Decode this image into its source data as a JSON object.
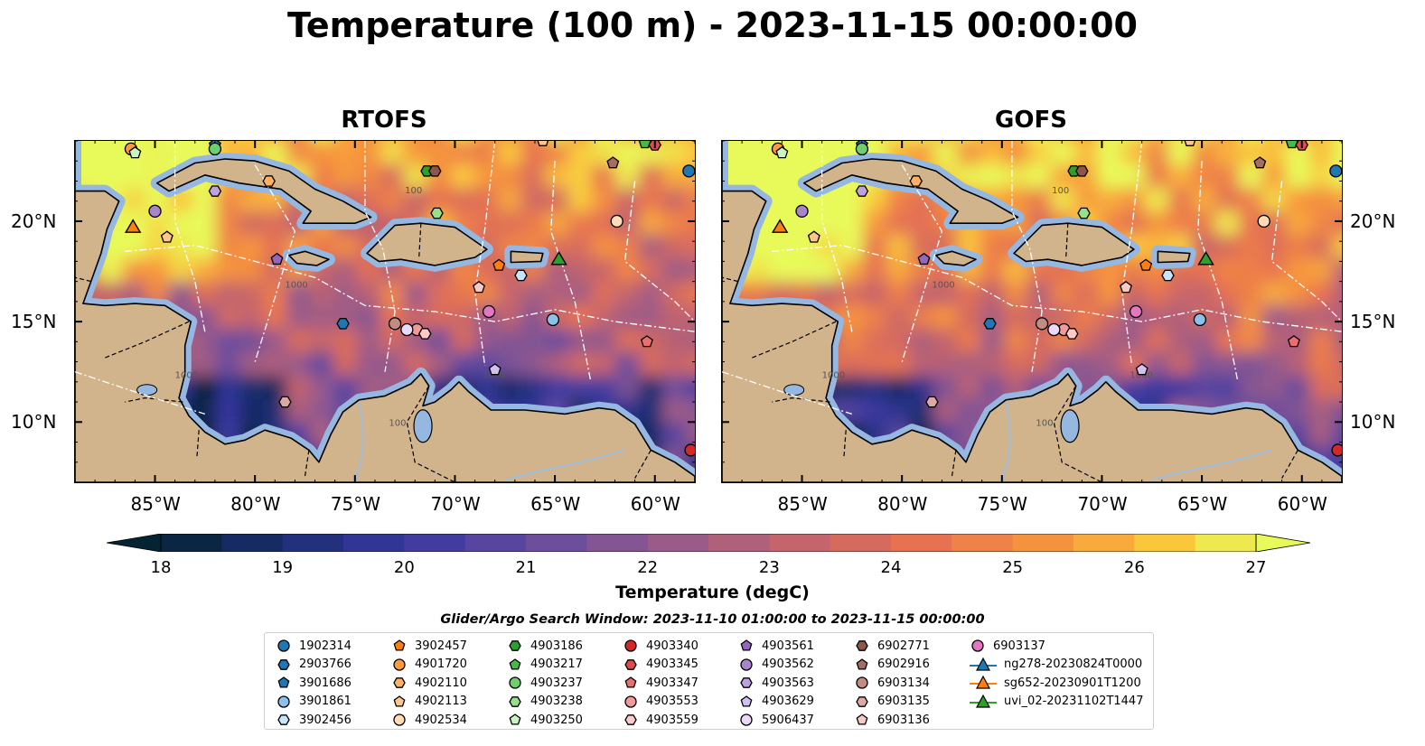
{
  "title": "Temperature (100 m) - 2023-11-15 00:00:00",
  "panels": [
    {
      "title": "RTOFS"
    },
    {
      "title": "GOFS"
    }
  ],
  "axes": {
    "lon_labels": [
      "85°W",
      "80°W",
      "75°W",
      "70°W",
      "65°W",
      "60°W"
    ],
    "lat_labels": [
      "20°N",
      "15°N",
      "10°N"
    ],
    "lon_values": [
      -85,
      -80,
      -75,
      -70,
      -65,
      -60
    ],
    "lat_values": [
      20,
      15,
      10
    ],
    "lon_range": [
      -89,
      -58
    ],
    "lat_range": [
      7,
      24
    ]
  },
  "colorbar": {
    "label": "Temperature (degC)",
    "ticks": [
      "18",
      "19",
      "20",
      "21",
      "22",
      "23",
      "24",
      "25",
      "26",
      "27"
    ],
    "range": [
      18,
      27
    ],
    "step": 0.5,
    "extend": "both",
    "colormap": "thermal"
  },
  "contours": [
    "100",
    "1000"
  ],
  "search_window": "Glider/Argo Search Window: 2023-11-10 01:00:00 to 2023-11-15 00:00:00",
  "legend": [
    {
      "label": "1902314",
      "marker": "circle",
      "color": "#1f77b4"
    },
    {
      "label": "2903766",
      "marker": "hexagon",
      "color": "#1f77b4"
    },
    {
      "label": "3901686",
      "marker": "pentagon",
      "color": "#1f77b4"
    },
    {
      "label": "3901861",
      "marker": "circle",
      "color": "#8cc2ea"
    },
    {
      "label": "3902456",
      "marker": "hexagon",
      "color": "#c6e4fb"
    },
    {
      "label": "3902457",
      "marker": "pentagon",
      "color": "#ff7f0e"
    },
    {
      "label": "4901720",
      "marker": "circle",
      "color": "#ff9a3c"
    },
    {
      "label": "4902110",
      "marker": "hexagon",
      "color": "#ffb066"
    },
    {
      "label": "4902113",
      "marker": "pentagon",
      "color": "#ffc58f"
    },
    {
      "label": "4902534",
      "marker": "circle",
      "color": "#ffdcb5"
    },
    {
      "label": "4903186",
      "marker": "hexagon",
      "color": "#2ca02c"
    },
    {
      "label": "4903217",
      "marker": "pentagon",
      "color": "#48b848"
    },
    {
      "label": "4903237",
      "marker": "circle",
      "color": "#6fcf6f"
    },
    {
      "label": "4903238",
      "marker": "hexagon",
      "color": "#98df8a"
    },
    {
      "label": "4903250",
      "marker": "pentagon",
      "color": "#c9f5c0"
    },
    {
      "label": "4903340",
      "marker": "circle",
      "color": "#d62728"
    },
    {
      "label": "4903345",
      "marker": "hexagon",
      "color": "#e04a4b"
    },
    {
      "label": "4903347",
      "marker": "pentagon",
      "color": "#eb6f6f"
    },
    {
      "label": "4903553",
      "marker": "circle",
      "color": "#f29a9a"
    },
    {
      "label": "4903559",
      "marker": "hexagon",
      "color": "#ffc9c9"
    },
    {
      "label": "4903561",
      "marker": "pentagon",
      "color": "#9467bd"
    },
    {
      "label": "4903562",
      "marker": "circle",
      "color": "#a884cf"
    },
    {
      "label": "4903563",
      "marker": "hexagon",
      "color": "#bea2de"
    },
    {
      "label": "4903629",
      "marker": "pentagon",
      "color": "#d4c0ee"
    },
    {
      "label": "5906437",
      "marker": "circle",
      "color": "#ead9fb"
    },
    {
      "label": "6902771",
      "marker": "hexagon",
      "color": "#8c564b"
    },
    {
      "label": "6902916",
      "marker": "pentagon",
      "color": "#a66e63"
    },
    {
      "label": "6903134",
      "marker": "circle",
      "color": "#c28c82"
    },
    {
      "label": "6903135",
      "marker": "hexagon",
      "color": "#dcaaa2"
    },
    {
      "label": "6903136",
      "marker": "pentagon",
      "color": "#f5cac3"
    },
    {
      "label": "6903137",
      "marker": "circle",
      "color": "#e377c2"
    },
    {
      "label": "ng278-20230824T0000",
      "marker": "triangle-line",
      "color": "#1f77b4"
    },
    {
      "label": "sg652-20230901T1200",
      "marker": "triangle-line",
      "color": "#ff7f0e"
    },
    {
      "label": "uvi_02-20231102T1447",
      "marker": "triangle-line",
      "color": "#2ca02c"
    }
  ],
  "floats": [
    {
      "id": "1902314",
      "lon": -58.3,
      "lat": 22.5
    },
    {
      "id": "2903766",
      "lon": -75.6,
      "lat": 14.9
    },
    {
      "id": "3901686",
      "lon": -82.0,
      "lat": 23.8
    },
    {
      "id": "3901861",
      "lon": -65.1,
      "lat": 15.1
    },
    {
      "id": "3902456",
      "lon": -66.7,
      "lat": 17.3
    },
    {
      "id": "3902457",
      "lon": -67.8,
      "lat": 17.8
    },
    {
      "id": "4901720",
      "lon": -86.2,
      "lat": 23.6
    },
    {
      "id": "4902110",
      "lon": -79.3,
      "lat": 22.0
    },
    {
      "id": "4902113",
      "lon": -65.6,
      "lat": 24.0
    },
    {
      "id": "4902534",
      "lon": -61.9,
      "lat": 20.0
    },
    {
      "id": "4903186",
      "lon": -71.4,
      "lat": 22.5
    },
    {
      "id": "4903217",
      "lon": -60.5,
      "lat": 23.9
    },
    {
      "id": "4903237",
      "lon": -82.0,
      "lat": 23.6
    },
    {
      "id": "4903238",
      "lon": -70.9,
      "lat": 20.4
    },
    {
      "id": "4903250",
      "lon": -86.0,
      "lat": 23.4
    },
    {
      "id": "4903340",
      "lon": -58.2,
      "lat": 8.6
    },
    {
      "id": "4903345",
      "lon": -60.0,
      "lat": 23.8
    },
    {
      "id": "4903347",
      "lon": -60.4,
      "lat": 14.0
    },
    {
      "id": "4903553",
      "lon": -71.9,
      "lat": 14.6
    },
    {
      "id": "4903559",
      "lon": -71.5,
      "lat": 14.4
    },
    {
      "id": "4903561",
      "lon": -78.9,
      "lat": 18.1
    },
    {
      "id": "4903562",
      "lon": -85.0,
      "lat": 20.5
    },
    {
      "id": "4903563",
      "lon": -82.0,
      "lat": 21.5
    },
    {
      "id": "4903629",
      "lon": -68.0,
      "lat": 12.6
    },
    {
      "id": "5906437",
      "lon": -72.4,
      "lat": 14.6
    },
    {
      "id": "6902771",
      "lon": -71.0,
      "lat": 22.5
    },
    {
      "id": "6902916",
      "lon": -62.1,
      "lat": 22.9
    },
    {
      "id": "6903134",
      "lon": -73.0,
      "lat": 14.9
    },
    {
      "id": "6903135",
      "lon": -78.5,
      "lat": 11.0
    },
    {
      "id": "6903136",
      "lon": -68.8,
      "lat": 16.7
    },
    {
      "id": "6903137",
      "lon": -68.3,
      "lat": 15.5
    },
    {
      "id": "4903238b",
      "lon": -84.4,
      "lat": 19.2
    }
  ],
  "gliders": [
    {
      "id": "sg652-20230901T1200",
      "lon": -86.1,
      "lat": 19.7
    },
    {
      "id": "uvi_02-20231102T1447",
      "lon": -64.8,
      "lat": 18.1
    }
  ]
}
